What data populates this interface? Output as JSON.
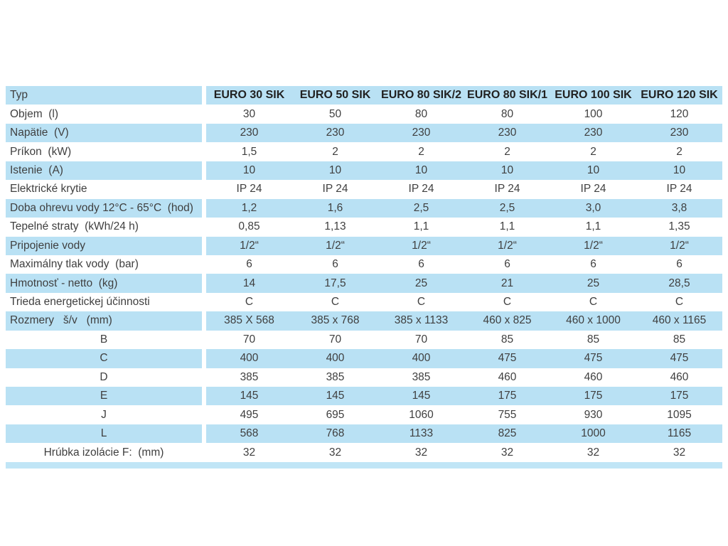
{
  "colors": {
    "row_blue": "#b9e1f4",
    "strip_blue": "#c0e5f6",
    "body_text": "#3f3f3f",
    "header_text": "#212121",
    "background": "#ffffff"
  },
  "table": {
    "corner_label": "Typ",
    "columns": [
      "EURO 30 SIK",
      "EURO 50 SIK",
      "EURO 80 SIK/2",
      "EURO 80 SIK/1",
      "EURO 100 SIK",
      "EURO 120 SIK"
    ],
    "rows": [
      {
        "label": "Objem  (l)",
        "label_align": "left",
        "values": [
          "30",
          "50",
          "80",
          "80",
          "100",
          "120"
        ]
      },
      {
        "label": "Napätie  (V)",
        "label_align": "left",
        "values": [
          "230",
          "230",
          "230",
          "230",
          "230",
          "230"
        ]
      },
      {
        "label": "Príkon  (kW)",
        "label_align": "left",
        "values": [
          "1,5",
          "2",
          "2",
          "2",
          "2",
          "2"
        ]
      },
      {
        "label": "Istenie  (A)",
        "label_align": "left",
        "values": [
          "10",
          "10",
          "10",
          "10",
          "10",
          "10"
        ]
      },
      {
        "label": "Elektrické krytie",
        "label_align": "left",
        "values": [
          "IP 24",
          "IP 24",
          "IP 24",
          "IP 24",
          "IP 24",
          "IP 24"
        ]
      },
      {
        "label": "Doba ohrevu vody 12°C - 65°C  (hod)",
        "label_align": "left",
        "values": [
          "1,2",
          "1,6",
          "2,5",
          "2,5",
          "3,0",
          "3,8"
        ]
      },
      {
        "label": "Tepelné straty  (kWh/24 h)",
        "label_align": "left",
        "values": [
          "0,85",
          "1,13",
          "1,1",
          "1,1",
          "1,1",
          "1,35"
        ]
      },
      {
        "label": "Pripojenie vody",
        "label_align": "left",
        "values": [
          "1/2“",
          "1/2“",
          "1/2“",
          "1/2“",
          "1/2“",
          "1/2“"
        ]
      },
      {
        "label": "Maximálny tlak vody  (bar)",
        "label_align": "left",
        "values": [
          "6",
          "6",
          "6",
          "6",
          "6",
          "6"
        ]
      },
      {
        "label": "Hmotnosť - netto  (kg)",
        "label_align": "left",
        "values": [
          "14",
          "17,5",
          "25",
          "21",
          "25",
          "28,5"
        ]
      },
      {
        "label": "Trieda energetickej účinnosti",
        "label_align": "left",
        "values": [
          "C",
          "C",
          "C",
          "C",
          "C",
          "C"
        ]
      },
      {
        "label": "Rozmery   š/v   (mm)",
        "label_align": "left",
        "values": [
          "385 X 568",
          "385 x 768",
          "385 x 1133",
          "460 x 825",
          "460 x 1000",
          "460 x 1165"
        ]
      },
      {
        "label": "B",
        "label_align": "center",
        "values": [
          "70",
          "70",
          "70",
          "85",
          "85",
          "85"
        ]
      },
      {
        "label": "C",
        "label_align": "center",
        "values": [
          "400",
          "400",
          "400",
          "475",
          "475",
          "475"
        ]
      },
      {
        "label": "D",
        "label_align": "center",
        "values": [
          "385",
          "385",
          "385",
          "460",
          "460",
          "460"
        ]
      },
      {
        "label": "E",
        "label_align": "center",
        "values": [
          "145",
          "145",
          "145",
          "175",
          "175",
          "175"
        ]
      },
      {
        "label": "J",
        "label_align": "center",
        "values": [
          "495",
          "695",
          "1060",
          "755",
          "930",
          "1095"
        ]
      },
      {
        "label": "L",
        "label_align": "center",
        "values": [
          "568",
          "768",
          "1133",
          "825",
          "1000",
          "1165"
        ]
      },
      {
        "label": "Hrúbka izolácie F:  (mm)",
        "label_align": "center",
        "values": [
          "32",
          "32",
          "32",
          "32",
          "32",
          "32"
        ]
      }
    ]
  }
}
